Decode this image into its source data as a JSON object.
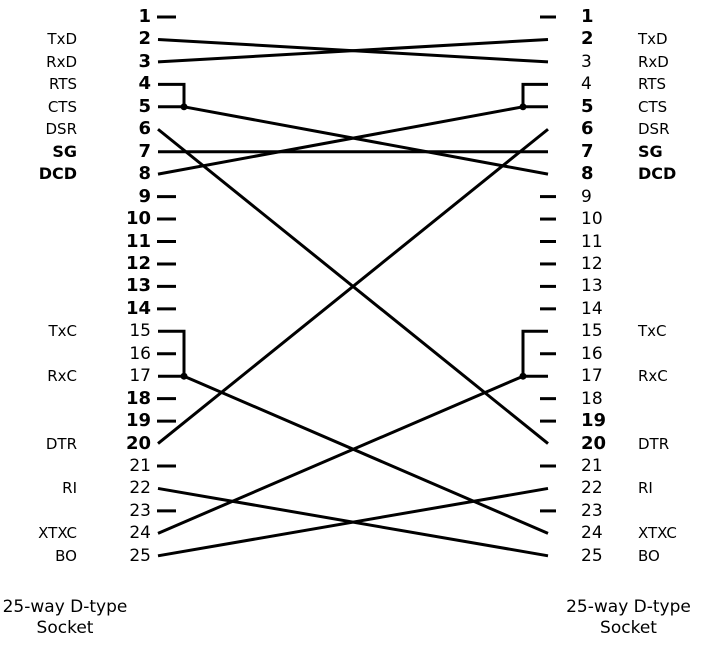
{
  "left_connector": {
    "caption_line1": "25-way D-type",
    "caption_line2": "Socket",
    "pins": [
      {
        "n": "1",
        "label": ""
      },
      {
        "n": "2",
        "label": "TxD"
      },
      {
        "n": "3",
        "label": "RxD"
      },
      {
        "n": "4",
        "label": "RTS"
      },
      {
        "n": "5",
        "label": "CTS"
      },
      {
        "n": "6",
        "label": "DSR"
      },
      {
        "n": "7",
        "label": "SG"
      },
      {
        "n": "8",
        "label": "DCD"
      },
      {
        "n": "9",
        "label": ""
      },
      {
        "n": "10",
        "label": ""
      },
      {
        "n": "11",
        "label": ""
      },
      {
        "n": "12",
        "label": ""
      },
      {
        "n": "13",
        "label": ""
      },
      {
        "n": "14",
        "label": ""
      },
      {
        "n": "15",
        "label": "TxC"
      },
      {
        "n": "16",
        "label": ""
      },
      {
        "n": "17",
        "label": "RxC"
      },
      {
        "n": "18",
        "label": ""
      },
      {
        "n": "19",
        "label": ""
      },
      {
        "n": "20",
        "label": "DTR"
      },
      {
        "n": "21",
        "label": ""
      },
      {
        "n": "22",
        "label": "RI"
      },
      {
        "n": "23",
        "label": ""
      },
      {
        "n": "24",
        "label": "XTXC"
      },
      {
        "n": "25",
        "label": "BO"
      }
    ]
  },
  "right_connector": {
    "caption_line1": "25-way D-type",
    "caption_line2": "Socket",
    "pins": [
      {
        "n": "1",
        "label": ""
      },
      {
        "n": "2",
        "label": "TxD"
      },
      {
        "n": "3",
        "label": "RxD"
      },
      {
        "n": "4",
        "label": "RTS"
      },
      {
        "n": "5",
        "label": "CTS"
      },
      {
        "n": "6",
        "label": "DSR"
      },
      {
        "n": "7",
        "label": "SG"
      },
      {
        "n": "8",
        "label": "DCD"
      },
      {
        "n": "9",
        "label": ""
      },
      {
        "n": "10",
        "label": ""
      },
      {
        "n": "11",
        "label": ""
      },
      {
        "n": "12",
        "label": ""
      },
      {
        "n": "13",
        "label": ""
      },
      {
        "n": "14",
        "label": ""
      },
      {
        "n": "15",
        "label": "TxC"
      },
      {
        "n": "16",
        "label": ""
      },
      {
        "n": "17",
        "label": "RxC"
      },
      {
        "n": "18",
        "label": ""
      },
      {
        "n": "19",
        "label": ""
      },
      {
        "n": "20",
        "label": "DTR"
      },
      {
        "n": "21",
        "label": ""
      },
      {
        "n": "22",
        "label": "RI"
      },
      {
        "n": "23",
        "label": ""
      },
      {
        "n": "24",
        "label": "XTXC"
      },
      {
        "n": "25",
        "label": "BO"
      }
    ]
  },
  "connections": [
    {
      "from": "2",
      "to": "3"
    },
    {
      "from": "3",
      "to": "2"
    },
    {
      "from": "5",
      "to": "8"
    },
    {
      "from": "8",
      "to": "5"
    },
    {
      "from": "6",
      "to": "20"
    },
    {
      "from": "20",
      "to": "6"
    },
    {
      "from": "7",
      "to": "7"
    },
    {
      "from": "17",
      "to": "24"
    },
    {
      "from": "24",
      "to": "17"
    },
    {
      "from": "22",
      "to": "25"
    },
    {
      "from": "25",
      "to": "22"
    }
  ],
  "loopbacks": [
    {
      "side": "left",
      "pins": [
        "4",
        "5"
      ]
    },
    {
      "side": "right",
      "pins": [
        "4",
        "5"
      ]
    },
    {
      "side": "left",
      "pins": [
        "15",
        "17"
      ]
    },
    {
      "side": "right",
      "pins": [
        "15",
        "17"
      ]
    }
  ]
}
